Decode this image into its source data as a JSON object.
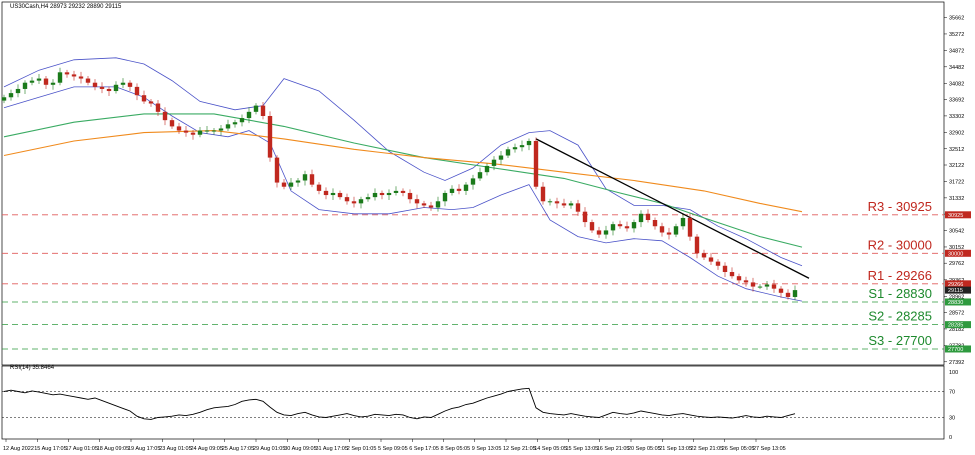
{
  "header": {
    "symbol_line": "US30Cash,H4  28973 29232 28890 29115",
    "rsi_label": "RSI(14) 35.8464"
  },
  "colors": {
    "bull_candle": "#1a7a1a",
    "bear_candle": "#c0281f",
    "bollinger": "#4a52c8",
    "ma_fast": "#3aab63",
    "ma_slow": "#f08a1c",
    "trendline": "#000000",
    "resistance": "#e05a5a",
    "support": "#2e9a3e",
    "rsi_line": "#000000"
  },
  "chart_data": [
    {
      "type": "candlestick",
      "title": "US30Cash,H4",
      "ohlc_last": {
        "open": 28973,
        "high": 29232,
        "low": 28890,
        "close": 29115
      },
      "ylim": [
        27315,
        36040
      ],
      "y_ticks": [
        35662,
        35272,
        34872,
        34482,
        34082,
        33692,
        33302,
        32902,
        32512,
        32122,
        31722,
        31332,
        30942,
        30542,
        30152,
        29762,
        29362,
        28962,
        28572,
        28182,
        27782,
        27392
      ],
      "x_ticks": [
        "12 Aug 2022",
        "15 Aug 17:05",
        "17 Aug 01:05",
        "18 Aug 09:05",
        "19 Aug 17:05",
        "23 Aug 01:05",
        "24 Aug 09:05",
        "25 Aug 17:05",
        "29 Aug 01:05",
        "30 Aug 09:05",
        "31 Aug 17:05",
        "2 Sep 01:05",
        "5 Sep 09:05",
        "6 Sep 17:05",
        "8 Sep 05:05",
        "9 Sep 13:05",
        "12 Sep 21:05",
        "14 Sep 05:05",
        "15 Sep 13:05",
        "16 Sep 21:05",
        "20 Sep 05:05",
        "21 Sep 13:05",
        "22 Sep 21:05",
        "26 Sep 05:05",
        "27 Sep 13:05"
      ],
      "closes": [
        33750,
        33850,
        33950,
        34100,
        34150,
        34200,
        34050,
        34100,
        34350,
        34300,
        34250,
        34200,
        34100,
        34000,
        33950,
        33900,
        34050,
        34100,
        34000,
        33800,
        33650,
        33600,
        33400,
        33200,
        33050,
        32950,
        32900,
        32850,
        32950,
        32950,
        32950,
        33000,
        33100,
        33150,
        33250,
        33400,
        33550,
        33300,
        32300,
        31700,
        31600,
        31700,
        31750,
        31900,
        31650,
        31500,
        31400,
        31450,
        31350,
        31250,
        31200,
        31300,
        31350,
        31450,
        31400,
        31450,
        31500,
        31450,
        31300,
        31200,
        31150,
        31100,
        31250,
        31450,
        31550,
        31500,
        31650,
        31800,
        31950,
        32100,
        32250,
        32350,
        32500,
        32550,
        32600,
        32700,
        31600,
        31250,
        31250,
        31200,
        31150,
        31200,
        31000,
        30750,
        30550,
        30450,
        30550,
        30700,
        30650,
        30600,
        30750,
        30950,
        30800,
        30650,
        30500,
        30450,
        30650,
        30850,
        30400,
        30000,
        29900,
        29800,
        29700,
        29550,
        29450,
        29350,
        29300,
        29200,
        29200,
        29250,
        29150,
        29050,
        28950,
        29115
      ],
      "series": [
        {
          "name": "Upper Bollinger",
          "points": [
            [
              0,
              34000
            ],
            [
              5,
              34400
            ],
            [
              10,
              34650
            ],
            [
              16,
              34700
            ],
            [
              20,
              34550
            ],
            [
              24,
              34150
            ],
            [
              28,
              33650
            ],
            [
              33,
              33450
            ],
            [
              37,
              33550
            ],
            [
              40,
              34200
            ],
            [
              45,
              33900
            ],
            [
              50,
              33200
            ],
            [
              55,
              32450
            ],
            [
              60,
              31950
            ],
            [
              63,
              31750
            ],
            [
              67,
              32050
            ],
            [
              71,
              32600
            ],
            [
              75,
              32900
            ],
            [
              78,
              32950
            ],
            [
              82,
              32600
            ],
            [
              86,
              31550
            ],
            [
              90,
              31150
            ],
            [
              94,
              31150
            ],
            [
              98,
              31050
            ],
            [
              102,
              30650
            ],
            [
              106,
              30350
            ],
            [
              111,
              29900
            ],
            [
              114,
              29700
            ]
          ]
        },
        {
          "name": "Lower Bollinger",
          "points": [
            [
              0,
              33500
            ],
            [
              5,
              33750
            ],
            [
              10,
              34000
            ],
            [
              16,
              34000
            ],
            [
              20,
              33750
            ],
            [
              24,
              33300
            ],
            [
              28,
              32900
            ],
            [
              32,
              32800
            ],
            [
              35,
              32950
            ],
            [
              38,
              32650
            ],
            [
              41,
              31500
            ],
            [
              45,
              31050
            ],
            [
              50,
              30950
            ],
            [
              55,
              30950
            ],
            [
              60,
              31100
            ],
            [
              64,
              31050
            ],
            [
              67,
              31100
            ],
            [
              71,
              31400
            ],
            [
              75,
              31650
            ],
            [
              78,
              30800
            ],
            [
              82,
              30400
            ],
            [
              86,
              30250
            ],
            [
              90,
              30350
            ],
            [
              94,
              30300
            ],
            [
              98,
              29900
            ],
            [
              102,
              29450
            ],
            [
              106,
              29150
            ],
            [
              111,
              28950
            ],
            [
              114,
              28850
            ]
          ]
        },
        {
          "name": "Moving Average (green)",
          "points": [
            [
              0,
              32800
            ],
            [
              10,
              33150
            ],
            [
              20,
              33350
            ],
            [
              30,
              33350
            ],
            [
              40,
              33050
            ],
            [
              50,
              32650
            ],
            [
              60,
              32300
            ],
            [
              70,
              32050
            ],
            [
              80,
              31800
            ],
            [
              88,
              31450
            ],
            [
              94,
              31200
            ],
            [
              100,
              30850
            ],
            [
              108,
              30400
            ],
            [
              114,
              30150
            ]
          ]
        },
        {
          "name": "Moving Average (orange)",
          "points": [
            [
              0,
              32350
            ],
            [
              10,
              32700
            ],
            [
              20,
              32900
            ],
            [
              30,
              32950
            ],
            [
              40,
              32750
            ],
            [
              50,
              32500
            ],
            [
              60,
              32300
            ],
            [
              70,
              32150
            ],
            [
              80,
              31950
            ],
            [
              90,
              31750
            ],
            [
              100,
              31500
            ],
            [
              108,
              31200
            ],
            [
              114,
              31000
            ]
          ]
        }
      ],
      "trendline": {
        "from": [
          76,
          32750
        ],
        "to": [
          115,
          29400
        ]
      },
      "levels": [
        {
          "label": "R3 - 30925",
          "value": 30925,
          "kind": "resistance"
        },
        {
          "label": "R2 - 30000",
          "value": 30000,
          "kind": "resistance"
        },
        {
          "label": "R1 - 29266",
          "value": 29266,
          "kind": "resistance"
        },
        {
          "label": "S1 - 28830",
          "value": 28830,
          "kind": "support"
        },
        {
          "label": "S2 - 28285",
          "value": 28285,
          "kind": "support"
        },
        {
          "label": "S3 - 27700",
          "value": 27700,
          "kind": "support"
        }
      ],
      "price_tags": [
        "30925",
        "30000",
        "29266",
        "29115",
        "28830",
        "28285",
        "27700"
      ],
      "grid": false
    },
    {
      "type": "line",
      "title": "RSI(14) 35.8464",
      "ylim": [
        0,
        100
      ],
      "y_ticks": [
        100,
        70,
        30,
        0
      ],
      "reference_lines": [
        70,
        30
      ],
      "rsi": [
        70,
        72,
        70,
        68,
        71,
        69,
        67,
        65,
        66,
        64,
        62,
        60,
        58,
        60,
        56,
        52,
        48,
        44,
        40,
        32,
        28,
        27,
        30,
        31,
        32,
        34,
        33,
        35,
        38,
        42,
        45,
        46,
        47,
        50,
        55,
        57,
        58,
        55,
        46,
        38,
        34,
        33,
        36,
        38,
        34,
        31,
        30,
        32,
        34,
        36,
        33,
        31,
        32,
        35,
        34,
        33,
        35,
        34,
        30,
        28,
        31,
        30,
        35,
        40,
        44,
        46,
        50,
        52,
        56,
        60,
        63,
        66,
        70,
        72,
        74,
        75,
        45,
        38,
        36,
        35,
        34,
        36,
        34,
        32,
        31,
        30,
        34,
        38,
        36,
        35,
        37,
        40,
        38,
        36,
        34,
        33,
        35,
        36,
        34,
        32,
        31,
        30,
        31,
        30,
        29,
        31,
        33,
        31,
        30,
        32,
        31,
        30,
        33,
        35.8
      ]
    }
  ]
}
